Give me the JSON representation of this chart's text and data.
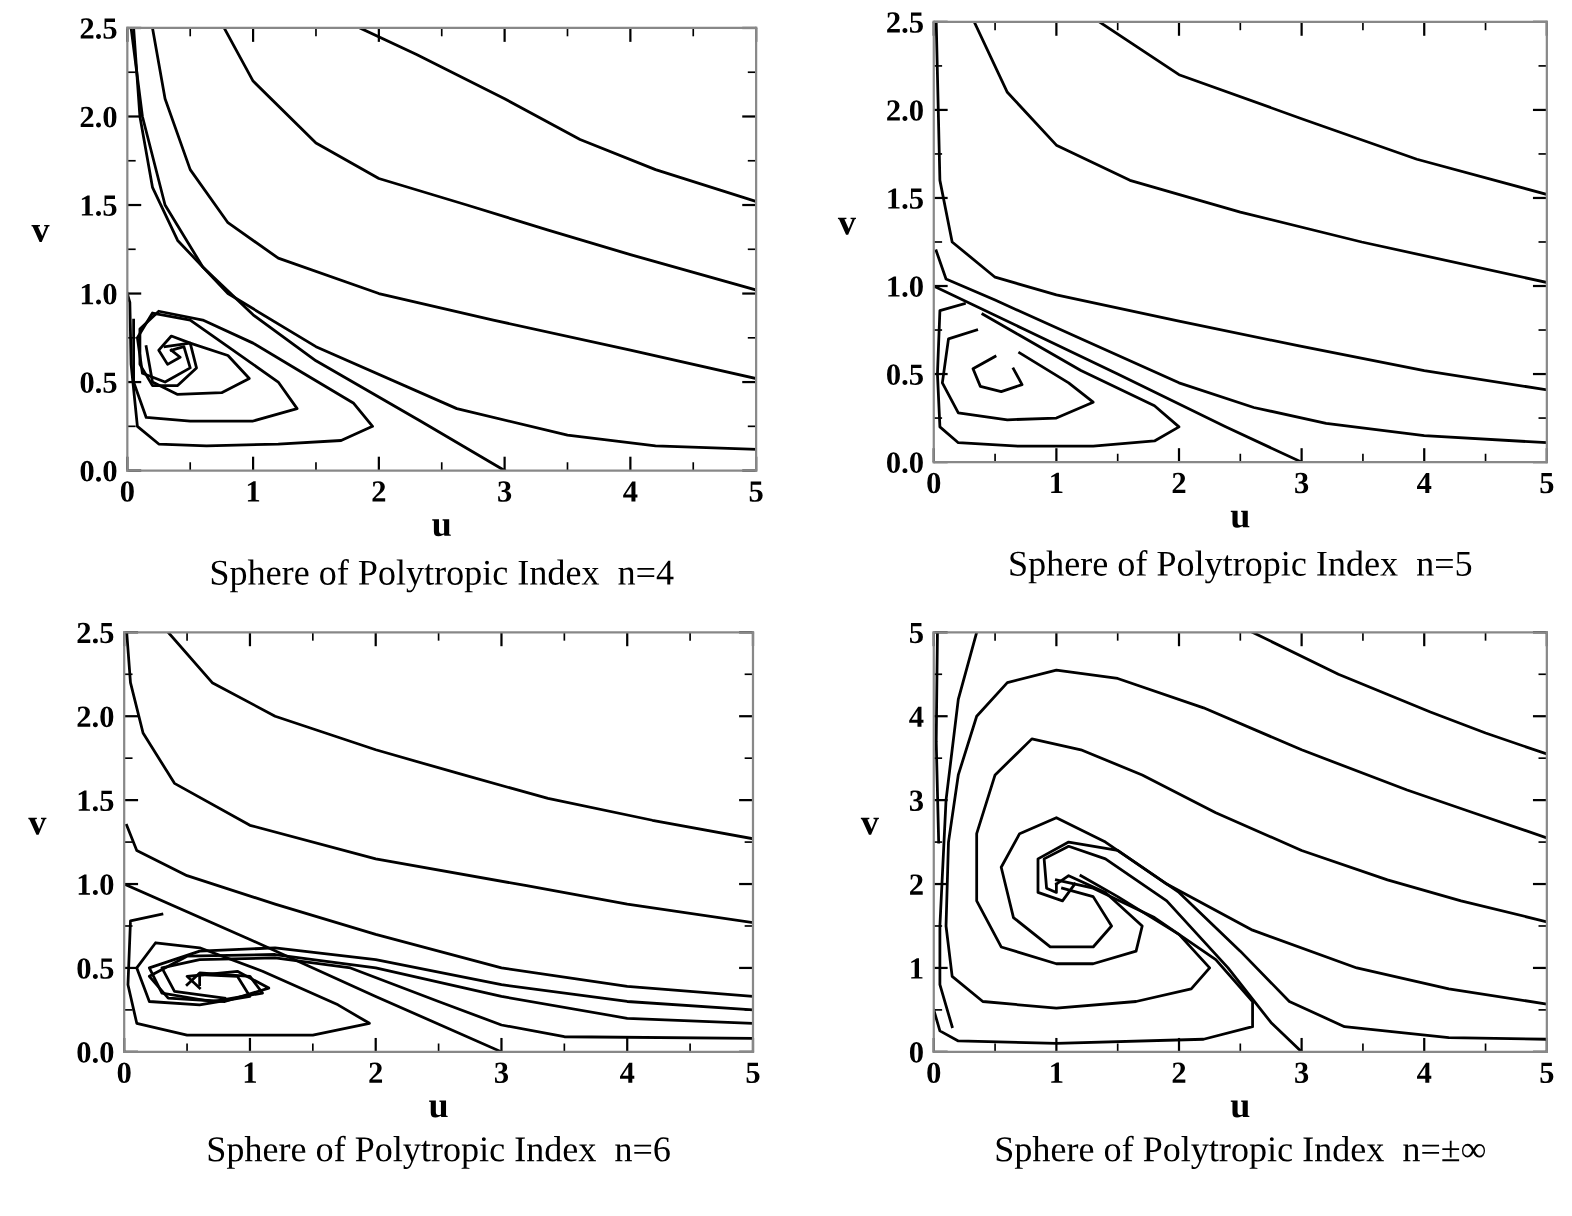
{
  "chart_data": [
    {
      "type": "line",
      "title": "Sphere of Polytropic Index  n=4",
      "xlabel": "u",
      "ylabel": "v",
      "xlim": [
        0,
        5
      ],
      "ylim": [
        0,
        2.5
      ],
      "xticks": [
        0,
        1,
        2,
        3,
        4,
        5
      ],
      "yticks": [
        {
          "value": 0,
          "label": "0.0"
        },
        {
          "value": 0.5,
          "label": "0.5"
        },
        {
          "value": 1,
          "label": "1.0"
        },
        {
          "value": 1.5,
          "label": "1.5"
        },
        {
          "value": 2,
          "label": "2.0"
        },
        {
          "value": 2.5,
          "label": "2.5"
        }
      ],
      "series": [
        {
          "color": "#000000",
          "x": [
            1.85,
            2.3,
            3,
            3.6,
            4.2,
            5
          ],
          "values": [
            2.5,
            2.35,
            2.1,
            1.87,
            1.7,
            1.52
          ]
        },
        {
          "color": "#000000",
          "x": [
            0.77,
            1,
            1.5,
            2,
            2.7,
            3.34,
            4,
            5
          ],
          "values": [
            2.5,
            2.2,
            1.85,
            1.65,
            1.5,
            1.36,
            1.22,
            1.02
          ]
        },
        {
          "color": "#000000",
          "x": [
            0.2,
            0.3,
            0.5,
            0.8,
            1.2,
            2,
            2.91,
            4,
            5
          ],
          "values": [
            2.5,
            2.1,
            1.7,
            1.4,
            1.2,
            1.0,
            0.85,
            0.68,
            0.52
          ]
        },
        {
          "color": "#000000",
          "x": [
            0.05,
            0.1,
            0.2,
            0.4,
            0.8,
            1.5,
            2.62,
            3.5,
            4.2,
            5
          ],
          "values": [
            2.5,
            2.0,
            1.6,
            1.3,
            1.0,
            0.7,
            0.35,
            0.2,
            0.14,
            0.12
          ]
        },
        {
          "color": "#000000",
          "x": [
            3,
            2.33,
            1.5,
            1,
            0.6,
            0.3,
            0.12,
            0.03
          ],
          "values": [
            0,
            0.28,
            0.62,
            0.88,
            1.15,
            1.5,
            2.0,
            2.5
          ]
        },
        {
          "color": "#000000",
          "x": [
            0,
            0.02,
            0.03,
            0.08,
            0.25,
            0.63,
            1.2,
            1.7,
            1.95,
            1.8,
            1.4,
            1.0,
            0.6,
            0.25,
            0.1,
            0.1,
            0.2,
            0.4,
            0.55,
            0.5,
            0.35,
            0.25,
            0.32,
            0.42,
            0.35
          ],
          "values": [
            1.0,
            0.95,
            0.6,
            0.25,
            0.15,
            0.14,
            0.15,
            0.17,
            0.25,
            0.38,
            0.55,
            0.72,
            0.85,
            0.9,
            0.8,
            0.6,
            0.48,
            0.48,
            0.58,
            0.72,
            0.76,
            0.68,
            0.6,
            0.64,
            0.68
          ]
        },
        {
          "color": "#000000",
          "x": [
            0.05,
            0.05,
            0.15,
            0.5,
            1.0,
            1.35,
            1.2,
            0.8,
            0.5,
            0.2,
            0.08,
            0.12,
            0.3,
            0.5,
            0.45,
            0.35
          ],
          "values": [
            0.85,
            0.5,
            0.3,
            0.28,
            0.28,
            0.35,
            0.5,
            0.7,
            0.85,
            0.89,
            0.75,
            0.55,
            0.5,
            0.58,
            0.7,
            0.68
          ]
        },
        {
          "color": "#000000",
          "x": [
            0.15,
            0.2,
            0.4,
            0.75,
            0.97,
            0.8,
            0.5,
            0.3
          ],
          "values": [
            0.7,
            0.5,
            0.43,
            0.44,
            0.52,
            0.65,
            0.72,
            0.7
          ]
        }
      ]
    },
    {
      "type": "line",
      "title": "Sphere of Polytropic Index  n=5",
      "xlabel": "u",
      "ylabel": "v",
      "xlim": [
        0,
        5
      ],
      "ylim": [
        0,
        2.5
      ],
      "xticks": [
        0,
        1,
        2,
        3,
        4,
        5
      ],
      "yticks": [
        {
          "value": 0,
          "label": "0.0"
        },
        {
          "value": 0.5,
          "label": "0.5"
        },
        {
          "value": 1,
          "label": "1.0"
        },
        {
          "value": 1.5,
          "label": "1.5"
        },
        {
          "value": 2,
          "label": "2.0"
        },
        {
          "value": 2.5,
          "label": "2.5"
        }
      ],
      "series": [
        {
          "color": "#000000",
          "x": [
            1.35,
            2,
            3,
            3.94,
            5
          ],
          "values": [
            2.5,
            2.2,
            1.95,
            1.72,
            1.52
          ]
        },
        {
          "color": "#000000",
          "x": [
            0.33,
            0.6,
            1,
            1.6,
            2.5,
            3.49,
            5
          ],
          "values": [
            2.5,
            2.1,
            1.8,
            1.6,
            1.42,
            1.25,
            1.02
          ]
        },
        {
          "color": "#000000",
          "x": [
            0.02,
            0.05,
            0.15,
            0.5,
            1,
            2,
            2.98,
            4,
            5
          ],
          "values": [
            2.5,
            1.6,
            1.25,
            1.05,
            0.95,
            0.8,
            0.66,
            0.52,
            0.41
          ]
        },
        {
          "color": "#000000",
          "x": [
            5,
            4,
            3.2,
            2.61,
            2,
            1.2,
            0.5,
            0.1,
            0.02
          ],
          "values": [
            0.11,
            0.15,
            0.22,
            0.31,
            0.45,
            0.7,
            0.92,
            1.04,
            1.2
          ]
        },
        {
          "color": "#000000",
          "x": [
            3,
            2.38,
            1.5,
            0.75,
            0
          ],
          "values": [
            0,
            0.2,
            0.5,
            0.75,
            1.0
          ]
        },
        {
          "color": "#000000",
          "x": [
            0.25,
            0.05,
            0.03,
            0.05,
            0.2,
            0.7,
            1.3,
            1.8,
            2.0,
            1.8,
            1.2,
            0.7,
            0.4
          ],
          "values": [
            0.9,
            0.86,
            0.5,
            0.2,
            0.11,
            0.09,
            0.09,
            0.12,
            0.2,
            0.32,
            0.52,
            0.72,
            0.84
          ]
        },
        {
          "color": "#000000",
          "x": [
            0.35,
            0.12,
            0.07,
            0.2,
            0.6,
            1.0,
            1.3,
            1.1,
            0.7
          ],
          "values": [
            0.75,
            0.7,
            0.45,
            0.28,
            0.24,
            0.25,
            0.34,
            0.45,
            0.62
          ]
        },
        {
          "color": "#000000",
          "x": [
            0.5,
            0.32,
            0.38,
            0.55,
            0.72,
            0.65
          ],
          "values": [
            0.6,
            0.53,
            0.43,
            0.4,
            0.44,
            0.53
          ]
        }
      ]
    },
    {
      "type": "line",
      "title": "Sphere of Polytropic Index  n=6",
      "xlabel": "u",
      "ylabel": "v",
      "xlim": [
        0,
        5
      ],
      "ylim": [
        0,
        2.5
      ],
      "xticks": [
        0,
        1,
        2,
        3,
        4,
        5
      ],
      "yticks": [
        {
          "value": 0,
          "label": "0.0"
        },
        {
          "value": 0.5,
          "label": "0.5"
        },
        {
          "value": 1,
          "label": "1.0"
        },
        {
          "value": 1.5,
          "label": "1.5"
        },
        {
          "value": 2,
          "label": "2.0"
        },
        {
          "value": 2.5,
          "label": "2.5"
        }
      ],
      "series": [
        {
          "color": "#000000",
          "x": [
            0.35,
            0.7,
            1.2,
            2,
            2.7,
            3.37,
            4.2,
            5
          ],
          "values": [
            2.5,
            2.2,
            2.0,
            1.8,
            1.65,
            1.51,
            1.38,
            1.27
          ]
        },
        {
          "color": "#000000",
          "x": [
            0.02,
            0.05,
            0.15,
            0.4,
            1,
            2,
            3.2,
            4,
            5
          ],
          "values": [
            2.5,
            2.2,
            1.9,
            1.6,
            1.35,
            1.15,
            0.99,
            0.88,
            0.77
          ]
        },
        {
          "color": "#000000",
          "x": [
            0.02,
            0.1,
            0.5,
            1.2,
            2,
            3,
            4,
            5
          ],
          "values": [
            1.35,
            1.2,
            1.05,
            0.88,
            0.7,
            0.5,
            0.39,
            0.33
          ]
        },
        {
          "color": "#000000",
          "x": [
            0,
            1,
            2,
            3
          ],
          "values": [
            1.0,
            0.67,
            0.33,
            0
          ]
        },
        {
          "color": "#000000",
          "x": [
            5,
            4,
            3,
            2,
            1.2,
            0.6,
            0.2,
            0.3,
            0.7,
            1.1,
            1.0,
            0.6,
            0.5
          ],
          "values": [
            0.25,
            0.3,
            0.4,
            0.55,
            0.62,
            0.6,
            0.5,
            0.35,
            0.3,
            0.35,
            0.45,
            0.47,
            0.4
          ]
        },
        {
          "color": "#000000",
          "x": [
            5,
            4,
            3,
            2,
            1.2,
            0.5,
            0.2,
            0.35,
            0.8,
            1.15,
            0.9,
            0.5,
            0.6
          ],
          "values": [
            0.17,
            0.2,
            0.33,
            0.5,
            0.58,
            0.57,
            0.45,
            0.32,
            0.3,
            0.38,
            0.48,
            0.45,
            0.38
          ]
        },
        {
          "color": "#000000",
          "x": [
            5,
            3.5,
            3,
            2.5,
            1.8,
            1.2,
            0.6,
            0.3,
            0.4,
            0.8
          ],
          "values": [
            0.08,
            0.09,
            0.16,
            0.3,
            0.5,
            0.56,
            0.55,
            0.5,
            0.36,
            0.32
          ]
        },
        {
          "color": "#000000",
          "x": [
            0.3,
            0.05,
            0.03,
            0.1,
            0.5,
            1.5,
            1.95,
            1.7,
            1.1,
            0.6,
            0.25,
            0.1,
            0.2,
            0.6,
            1.0,
            0.9,
            0.6,
            0.6
          ],
          "values": [
            0.82,
            0.78,
            0.4,
            0.17,
            0.1,
            0.1,
            0.17,
            0.28,
            0.48,
            0.62,
            0.65,
            0.5,
            0.3,
            0.28,
            0.33,
            0.45,
            0.46,
            0.4
          ]
        }
      ]
    },
    {
      "type": "line",
      "title": "Sphere of Polytropic Index  n=±∞",
      "xlabel": "u",
      "ylabel": "v",
      "xlim": [
        0,
        5
      ],
      "ylim": [
        0,
        5
      ],
      "xticks": [
        0,
        1,
        2,
        3,
        4,
        5
      ],
      "yticks": [
        0,
        1,
        2,
        3,
        4,
        5
      ],
      "series": [
        {
          "color": "#000000",
          "x": [
            2.6,
            3.3,
            4.05,
            4.5,
            5
          ],
          "values": [
            5,
            4.5,
            4.05,
            3.8,
            3.55
          ]
        },
        {
          "color": "#000000",
          "x": [
            5,
            4.4,
            3.86,
            3,
            2.2,
            1.5,
            1,
            0.6,
            0.35,
            0.2,
            0.12,
            0.1,
            0.15,
            0.4,
            1,
            1.65,
            2.1,
            2.25,
            2.0,
            1.5,
            1.2
          ],
          "values": [
            2.55,
            2.85,
            3.12,
            3.6,
            4.1,
            4.45,
            4.55,
            4.4,
            4.0,
            3.3,
            2.5,
            1.5,
            0.9,
            0.6,
            0.52,
            0.6,
            0.75,
            1.0,
            1.4,
            1.85,
            2.1
          ]
        },
        {
          "color": "#000000",
          "x": [
            5,
            4.3,
            3.7,
            3,
            2.3,
            1.7,
            1.2,
            0.8,
            0.5,
            0.35,
            0.35,
            0.55,
            1.0,
            1.3,
            1.65,
            1.7,
            1.4,
            1.1,
            1
          ],
          "values": [
            1.55,
            1.8,
            2.05,
            2.4,
            2.85,
            3.3,
            3.6,
            3.73,
            3.3,
            2.6,
            1.8,
            1.25,
            1.05,
            1.05,
            1.2,
            1.5,
            1.9,
            2.1,
            2
          ]
        },
        {
          "color": "#000000",
          "x": [
            5,
            4.2,
            3.45,
            2.6,
            1.9,
            1.4,
            1.0,
            0.7,
            0.55,
            0.65,
            0.95,
            1.3,
            1.45,
            1.3,
            1.05
          ],
          "values": [
            0.57,
            0.75,
            1.0,
            1.45,
            2.0,
            2.5,
            2.79,
            2.6,
            2.2,
            1.6,
            1.25,
            1.25,
            1.5,
            1.85,
            1.95
          ]
        },
        {
          "color": "#000000",
          "x": [
            5,
            4.2,
            3.35,
            2.9,
            2.5,
            2.0,
            1.5,
            1.1,
            0.85,
            0.85,
            1.05,
            1.15
          ],
          "values": [
            0.15,
            0.17,
            0.3,
            0.6,
            1.2,
            1.9,
            2.4,
            2.5,
            2.3,
            1.9,
            1.8,
            2.0
          ]
        },
        {
          "color": "#000000",
          "x": [
            3,
            2.75,
            2.4,
            1.9,
            1.4,
            1.1,
            0.9,
            0.92,
            1,
            1
          ],
          "values": [
            0,
            0.35,
            1.0,
            1.8,
            2.3,
            2.45,
            2.3,
            1.95,
            1.9,
            2
          ]
        },
        {
          "color": "#000000",
          "x": [
            0,
            0.05,
            0.2,
            1,
            2.2,
            2.6,
            2.6,
            2.3,
            1.8,
            1.3,
            1.0
          ],
          "values": [
            0.5,
            0.25,
            0.13,
            0.1,
            0.15,
            0.3,
            0.6,
            1.1,
            1.6,
            1.95,
            2.05
          ]
        },
        {
          "color": "#000000",
          "x": [
            0.35,
            0.2,
            0.1,
            0.05,
            0.05,
            0.15
          ],
          "values": [
            5,
            4.2,
            3.0,
            1.5,
            0.8,
            0.3
          ]
        },
        {
          "color": "#000000",
          "x": [
            0.03,
            0.02,
            0.04
          ],
          "values": [
            5,
            3.7,
            2.5
          ]
        }
      ]
    }
  ]
}
